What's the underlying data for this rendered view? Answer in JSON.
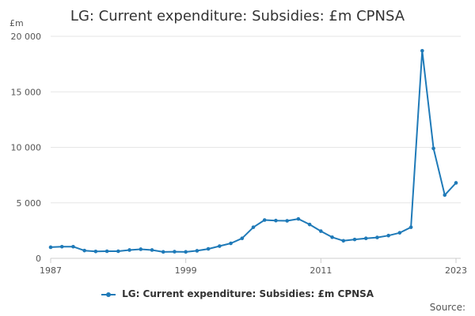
{
  "chart_data": {
    "type": "line",
    "title": "LG: Current expenditure: Subsidies: £m CPNSA",
    "ylabel": "£m",
    "xlabel": "",
    "ylim": [
      0,
      20000
    ],
    "yticks": [
      0,
      5000,
      10000,
      15000,
      20000
    ],
    "ytick_labels": [
      "0",
      "5 000",
      "10 000",
      "15 000",
      "20 000"
    ],
    "xlim": [
      1987,
      2023
    ],
    "xticks": [
      1987,
      1999,
      2011,
      2023
    ],
    "xtick_labels": [
      "1987",
      "1999",
      "2011",
      "2023"
    ],
    "grid": true,
    "legend_position": "bottom",
    "series": [
      {
        "name": "LG: Current expenditure: Subsidies: £m CPNSA",
        "color": "#1f7ab8",
        "x": [
          1987,
          1988,
          1989,
          1990,
          1991,
          1992,
          1993,
          1994,
          1995,
          1996,
          1997,
          1998,
          1999,
          2000,
          2001,
          2002,
          2003,
          2004,
          2005,
          2006,
          2007,
          2008,
          2009,
          2010,
          2011,
          2012,
          2013,
          2014,
          2015,
          2016,
          2017,
          2018,
          2019,
          2020,
          2021,
          2022,
          2023
        ],
        "values": [
          1000,
          1050,
          1050,
          700,
          620,
          640,
          640,
          750,
          820,
          750,
          580,
          600,
          580,
          680,
          850,
          1100,
          1350,
          1800,
          2800,
          3450,
          3400,
          3380,
          3550,
          3050,
          2450,
          1900,
          1580,
          1700,
          1800,
          1880,
          2050,
          2300,
          2800,
          18700,
          9900,
          5700,
          6800
        ]
      }
    ],
    "source_label": "Source:"
  }
}
